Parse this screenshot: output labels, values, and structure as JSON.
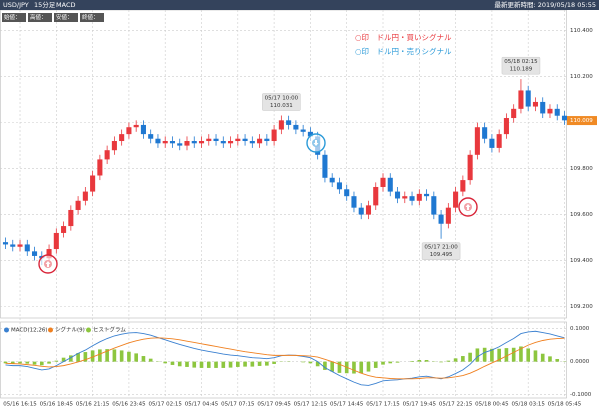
{
  "header": {
    "symbol": "USD/JPY",
    "interval": "15分足",
    "indicator": "MACD",
    "updated": "最新更新時間: 2019/05/18 05:55"
  },
  "ohlc_buttons": [
    "始値：",
    "高値：",
    "安値：",
    "終値："
  ],
  "signal_legend": [
    "○印　ドル円・買いシグナル",
    "○印　ドル円・売りシグナル"
  ],
  "chart_data": [
    {
      "type": "candlestick",
      "categories": [
        null,
        null,
        "05/16 16:15",
        null,
        null,
        null,
        null,
        "05/16 18:45",
        null,
        null,
        null,
        null,
        "05/16 21:15",
        null,
        null,
        null,
        null,
        "05/16 23:45",
        null,
        null,
        null,
        null,
        "05/17 02:15",
        null,
        null,
        null,
        null,
        "05/17 04:45",
        null,
        null,
        null,
        null,
        "05/17 07:15",
        null,
        null,
        null,
        null,
        "05/17 09:45",
        null,
        null,
        null,
        null,
        "05/17 12:15",
        null,
        null,
        null,
        null,
        "05/17 14:45",
        null,
        null,
        null,
        null,
        "05/17 17:15",
        null,
        null,
        null,
        null,
        "05/17 19:45",
        null,
        null,
        null,
        null,
        "05/17 22:15",
        null,
        null,
        null,
        null,
        "05/18 00:45",
        null,
        null,
        null,
        null,
        "05/18 03:15",
        null,
        null,
        null,
        null,
        "05/18 05:45"
      ],
      "open": [
        109.48,
        109.47,
        109.46,
        109.47,
        109.44,
        109.42,
        109.41,
        109.45,
        109.52,
        109.55,
        109.62,
        109.66,
        109.7,
        109.77,
        109.84,
        109.88,
        109.92,
        109.95,
        109.98,
        109.99,
        109.95,
        109.93,
        109.91,
        109.92,
        109.91,
        109.9,
        109.92,
        109.91,
        109.92,
        109.93,
        109.92,
        109.91,
        109.92,
        109.93,
        109.92,
        109.91,
        109.93,
        109.92,
        109.97,
        110.01,
        109.99,
        109.97,
        109.96,
        109.94,
        109.86,
        109.76,
        109.74,
        109.71,
        109.68,
        109.63,
        109.6,
        109.64,
        109.72,
        109.76,
        109.7,
        109.67,
        109.68,
        109.66,
        109.69,
        109.68,
        109.6,
        109.56,
        109.63,
        109.7,
        109.75,
        109.86,
        109.98,
        109.93,
        109.89,
        109.95,
        110.02,
        110.06,
        110.14,
        110.07,
        110.09,
        110.04,
        110.06,
        110.03
      ],
      "high": [
        109.5,
        109.49,
        109.49,
        109.49,
        109.46,
        109.44,
        109.47,
        109.54,
        109.57,
        109.64,
        109.68,
        109.72,
        109.79,
        109.86,
        109.9,
        109.94,
        109.97,
        110.0,
        110.01,
        110.01,
        109.97,
        109.95,
        109.94,
        109.94,
        109.93,
        109.94,
        109.94,
        109.94,
        109.95,
        109.95,
        109.94,
        109.94,
        109.95,
        109.95,
        109.94,
        109.95,
        109.95,
        109.99,
        110.031,
        110.03,
        110.01,
        109.99,
        109.98,
        109.96,
        109.88,
        109.78,
        109.76,
        109.73,
        109.7,
        109.65,
        109.66,
        109.74,
        109.78,
        109.78,
        109.72,
        109.7,
        109.7,
        109.71,
        109.71,
        109.7,
        109.62,
        109.65,
        109.72,
        109.77,
        109.88,
        110.0,
        110.0,
        109.95,
        109.97,
        110.04,
        110.08,
        110.189,
        110.16,
        110.11,
        110.11,
        110.08,
        110.08,
        110.05
      ],
      "low": [
        109.45,
        109.44,
        109.44,
        109.42,
        109.4,
        109.38,
        109.39,
        109.43,
        109.5,
        109.53,
        109.6,
        109.64,
        109.68,
        109.75,
        109.82,
        109.86,
        109.9,
        109.93,
        109.96,
        109.93,
        109.91,
        109.89,
        109.89,
        109.89,
        109.88,
        109.88,
        109.89,
        109.89,
        109.9,
        109.9,
        109.89,
        109.89,
        109.9,
        109.9,
        109.89,
        109.89,
        109.9,
        109.9,
        109.95,
        109.97,
        109.95,
        109.94,
        109.92,
        109.84,
        109.74,
        109.72,
        109.69,
        109.66,
        109.61,
        109.58,
        109.58,
        109.62,
        109.7,
        109.68,
        109.65,
        109.65,
        109.64,
        109.64,
        109.66,
        109.58,
        109.495,
        109.54,
        109.61,
        109.68,
        109.73,
        109.84,
        109.91,
        109.87,
        109.87,
        109.93,
        110.0,
        110.04,
        110.05,
        110.05,
        110.02,
        110.02,
        110.01,
        109.99
      ],
      "close": [
        109.47,
        109.46,
        109.47,
        109.44,
        109.42,
        109.41,
        109.45,
        109.52,
        109.55,
        109.62,
        109.66,
        109.7,
        109.77,
        109.84,
        109.88,
        109.92,
        109.95,
        109.98,
        109.99,
        109.95,
        109.93,
        109.91,
        109.92,
        109.91,
        109.9,
        109.92,
        109.91,
        109.92,
        109.93,
        109.92,
        109.91,
        109.92,
        109.93,
        109.92,
        109.91,
        109.93,
        109.92,
        109.97,
        110.01,
        109.99,
        109.97,
        109.96,
        109.94,
        109.86,
        109.76,
        109.74,
        109.71,
        109.68,
        109.63,
        109.6,
        109.64,
        109.72,
        109.76,
        109.7,
        109.67,
        109.68,
        109.66,
        109.69,
        109.68,
        109.6,
        109.56,
        109.63,
        109.7,
        109.75,
        109.86,
        109.98,
        109.93,
        109.89,
        109.95,
        110.02,
        110.06,
        110.14,
        110.07,
        110.09,
        110.04,
        110.06,
        110.03,
        110.01
      ],
      "up_color": "#e8383d",
      "down_color": "#1f78d1",
      "ylim": [
        109.15,
        110.49
      ],
      "yticks": [
        {
          "value": 110.4,
          "label": "110.400"
        },
        {
          "value": 110.2,
          "label": "110.200"
        },
        {
          "value": 110.0,
          "label": "110.000"
        },
        {
          "value": 109.8,
          "label": "109.800"
        },
        {
          "value": 109.6,
          "label": "109.600"
        },
        {
          "value": 109.4,
          "label": "109.400"
        },
        {
          "value": 109.2,
          "label": "109.200"
        }
      ],
      "last_price": 110.009,
      "last_price_color": "#f08a24",
      "grid": true,
      "annotations": [
        {
          "time": "05/17 10:00",
          "value": 110.031
        },
        {
          "time": "05/17 21:00",
          "value": 109.495
        },
        {
          "time": "05/18 02:15",
          "value": 110.189
        }
      ]
    },
    {
      "type": "macd",
      "series": [
        {
          "name": "MACD(12,26)",
          "color": "#3a80d0",
          "values": [
            -0.01,
            -0.012,
            -0.012,
            -0.015,
            -0.02,
            -0.025,
            -0.022,
            -0.012,
            0.0,
            0.012,
            0.025,
            0.035,
            0.048,
            0.06,
            0.07,
            0.078,
            0.083,
            0.087,
            0.088,
            0.085,
            0.08,
            0.073,
            0.066,
            0.059,
            0.052,
            0.046,
            0.04,
            0.035,
            0.031,
            0.027,
            0.023,
            0.02,
            0.018,
            0.015,
            0.012,
            0.011,
            0.009,
            0.012,
            0.018,
            0.02,
            0.019,
            0.016,
            0.012,
            0.0,
            -0.018,
            -0.03,
            -0.042,
            -0.052,
            -0.062,
            -0.07,
            -0.072,
            -0.066,
            -0.058,
            -0.056,
            -0.055,
            -0.052,
            -0.05,
            -0.046,
            -0.044,
            -0.048,
            -0.052,
            -0.046,
            -0.036,
            -0.025,
            -0.008,
            0.015,
            0.028,
            0.035,
            0.045,
            0.058,
            0.07,
            0.085,
            0.09,
            0.092,
            0.088,
            0.084,
            0.078,
            0.072
          ]
        },
        {
          "name": "シグナル(9)",
          "color": "#f08020",
          "values": [
            -0.005,
            -0.006,
            -0.007,
            -0.009,
            -0.011,
            -0.014,
            -0.016,
            -0.015,
            -0.012,
            -0.007,
            -0.001,
            0.006,
            0.014,
            0.023,
            0.032,
            0.041,
            0.049,
            0.057,
            0.063,
            0.068,
            0.071,
            0.072,
            0.071,
            0.069,
            0.066,
            0.062,
            0.058,
            0.054,
            0.05,
            0.046,
            0.042,
            0.038,
            0.034,
            0.03,
            0.027,
            0.024,
            0.021,
            0.019,
            0.019,
            0.019,
            0.019,
            0.018,
            0.017,
            0.014,
            0.007,
            0.0,
            -0.008,
            -0.017,
            -0.026,
            -0.035,
            -0.042,
            -0.047,
            -0.049,
            -0.051,
            -0.052,
            -0.052,
            -0.052,
            -0.051,
            -0.049,
            -0.049,
            -0.05,
            -0.049,
            -0.046,
            -0.042,
            -0.035,
            -0.025,
            -0.014,
            -0.004,
            0.006,
            0.017,
            0.028,
            0.039,
            0.05,
            0.058,
            0.064,
            0.068,
            0.07,
            0.071
          ]
        },
        {
          "name": "ヒストグラム",
          "color": "#8dc63f",
          "values": [
            -0.005,
            -0.006,
            -0.005,
            -0.006,
            -0.009,
            -0.011,
            -0.006,
            0.003,
            0.012,
            0.019,
            0.026,
            0.029,
            0.034,
            0.037,
            0.038,
            0.037,
            0.034,
            0.03,
            0.025,
            0.017,
            0.009,
            0.001,
            -0.005,
            -0.01,
            -0.014,
            -0.016,
            -0.018,
            -0.019,
            -0.019,
            -0.019,
            -0.019,
            -0.018,
            -0.016,
            -0.015,
            -0.015,
            -0.013,
            -0.012,
            -0.007,
            -0.001,
            0.001,
            0.0,
            -0.002,
            -0.005,
            -0.014,
            -0.025,
            -0.03,
            -0.034,
            -0.035,
            -0.036,
            -0.035,
            -0.03,
            -0.019,
            -0.009,
            -0.005,
            -0.003,
            0.0,
            0.002,
            0.005,
            0.005,
            0.001,
            -0.002,
            0.003,
            0.01,
            0.017,
            0.027,
            0.04,
            0.042,
            0.039,
            0.039,
            0.041,
            0.042,
            0.046,
            0.04,
            0.034,
            0.024,
            0.016,
            0.008,
            0.001
          ]
        }
      ],
      "ylim": [
        -0.11,
        0.12
      ],
      "yticks": [
        {
          "value": 0.1,
          "label": "0.1000"
        },
        {
          "value": 0,
          "label": "0.0000"
        },
        {
          "value": -0.1,
          "label": "-0.1000"
        }
      ],
      "grid": true
    }
  ]
}
